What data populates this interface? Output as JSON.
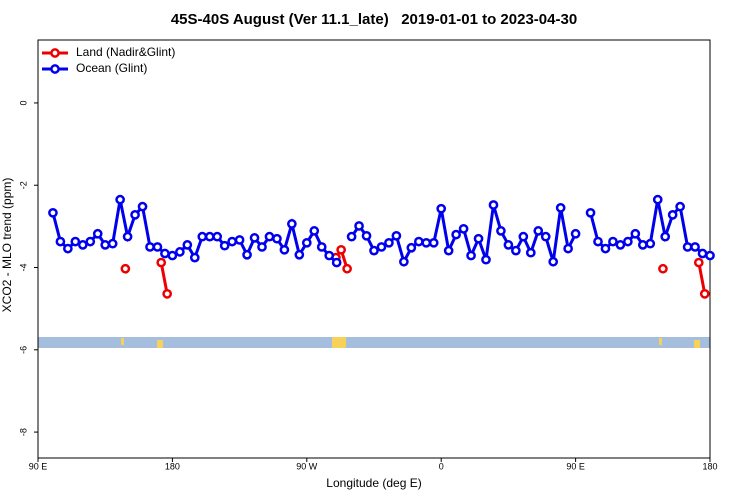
{
  "chart_data": {
    "type": "line",
    "title": "45S-40S August (Ver 11.1_late)   2019-01-01 to 2023-04-30",
    "x_label": "Longitude (deg E)",
    "y_label": "XCO2 - MLO trend (ppm)",
    "xlim": [
      90,
      540
    ],
    "xticks": [
      {
        "value": 90,
        "label": "90 E"
      },
      {
        "value": 180,
        "label": "180"
      },
      {
        "value": 270,
        "label": "90 W"
      },
      {
        "value": 360,
        "label": "0"
      },
      {
        "value": 450,
        "label": "90 E"
      },
      {
        "value": 540,
        "label": "180"
      }
    ],
    "ylim": [
      -8.63,
      1.53
    ],
    "yticks": [
      -8,
      -6,
      -4,
      -2,
      0
    ],
    "legend": "top-left",
    "series": [
      {
        "name": "Land (Nadir&Glint)",
        "color": "#ee0000",
        "x": [
          148.5,
          null,
          172.5,
          176.5,
          null,
          289.5,
          293,
          297,
          null,
          508.5,
          null,
          532.5,
          536.5
        ],
        "values": [
          -4.03,
          null,
          -3.88,
          -4.64,
          null,
          -3.76,
          -3.57,
          -4.03,
          null,
          -4.03,
          null,
          -3.88,
          -4.64
        ]
      },
      {
        "name": "Ocean (Glint)",
        "color": "#0000ee",
        "x": [
          100,
          105,
          110,
          115,
          120,
          125,
          130,
          135,
          140,
          145,
          150,
          155,
          160,
          165,
          170,
          175,
          180,
          185,
          190,
          195,
          200,
          205,
          210,
          215,
          220,
          225,
          230,
          235,
          240,
          245,
          250,
          255,
          260,
          265,
          270,
          275,
          280,
          285,
          290,
          295,
          300,
          305,
          310,
          315,
          320,
          325,
          330,
          335,
          340,
          345,
          350,
          355,
          360,
          365,
          370,
          375,
          380,
          385,
          390,
          395,
          400,
          405,
          410,
          415,
          420,
          425,
          430,
          435,
          440,
          445,
          450,
          455,
          460,
          465,
          470,
          475,
          480,
          485,
          490,
          495,
          500,
          505,
          510,
          515,
          520,
          525,
          530,
          535,
          540
        ],
        "values": [
          -2.67,
          -3.37,
          -3.54,
          -3.37,
          -3.45,
          -3.37,
          -3.18,
          -3.45,
          -3.42,
          -2.35,
          -3.25,
          -2.72,
          -2.52,
          -3.5,
          -3.5,
          -3.66,
          -3.71,
          -3.62,
          -3.45,
          -3.76,
          -3.25,
          -3.25,
          -3.25,
          -3.47,
          -3.37,
          -3.33,
          -3.69,
          -3.28,
          -3.5,
          -3.25,
          -3.3,
          -3.57,
          -2.94,
          -3.69,
          -3.4,
          -3.11,
          -3.5,
          -3.71,
          -3.88,
          null,
          -3.25,
          -2.99,
          -3.23,
          -3.59,
          -3.5,
          -3.4,
          -3.23,
          -3.86,
          -3.52,
          -3.37,
          -3.4,
          -3.4,
          -2.57,
          -3.59,
          -3.2,
          -3.06,
          -3.71,
          -3.3,
          -3.81,
          -2.48,
          -3.11,
          -3.45,
          -3.59,
          -3.25,
          -3.64,
          -3.11,
          -3.25,
          -3.86,
          -2.55,
          -3.54,
          -3.18,
          null,
          -2.67,
          -3.37,
          -3.54,
          -3.37,
          -3.45,
          -3.37,
          -3.18,
          -3.45,
          -3.42,
          -2.35,
          -3.25,
          -2.72,
          -2.52,
          -3.5,
          -3.5,
          -3.66,
          -3.71
        ]
      }
    ]
  }
}
